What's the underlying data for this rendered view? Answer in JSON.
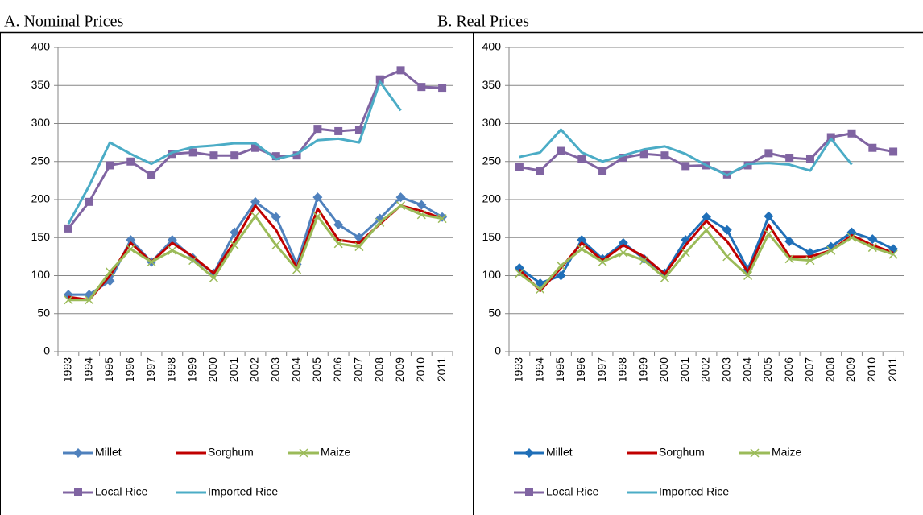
{
  "chart_data": [
    {
      "type": "line",
      "title": "A. Nominal Prices",
      "categories": [
        "1993",
        "1994",
        "1995",
        "1996",
        "1997",
        "1998",
        "1999",
        "2000",
        "2001",
        "2002",
        "2003",
        "2004",
        "2005",
        "2006",
        "2007",
        "2008",
        "2009",
        "2010",
        "2011"
      ],
      "ylim": [
        0,
        400
      ],
      "yticks": [
        0,
        50,
        100,
        150,
        200,
        250,
        300,
        350,
        400
      ],
      "grid": true,
      "legend": "bottom",
      "series": [
        {
          "name": "Millet",
          "color": "#4f81bd",
          "marker": "diamond",
          "values": [
            75,
            75,
            93,
            147,
            118,
            147,
            123,
            103,
            157,
            197,
            177,
            115,
            203,
            167,
            150,
            175,
            203,
            193,
            177
          ]
        },
        {
          "name": "Sorghum",
          "color": "#c00000",
          "marker": "none",
          "values": [
            72,
            68,
            100,
            143,
            118,
            143,
            125,
            103,
            145,
            192,
            160,
            110,
            188,
            147,
            143,
            168,
            192,
            185,
            175
          ]
        },
        {
          "name": "Maize",
          "color": "#9bbb59",
          "marker": "x",
          "values": [
            68,
            68,
            105,
            135,
            118,
            133,
            120,
            97,
            140,
            178,
            140,
            108,
            178,
            142,
            138,
            170,
            192,
            180,
            175
          ]
        },
        {
          "name": "Local Rice",
          "color": "#8064a2",
          "marker": "square",
          "values": [
            162,
            197,
            245,
            250,
            232,
            260,
            262,
            258,
            258,
            268,
            257,
            258,
            293,
            290,
            292,
            358,
            370,
            348,
            347
          ]
        },
        {
          "name": "Imported Rice",
          "color": "#4bacc6",
          "marker": "none",
          "values": [
            168,
            218,
            275,
            260,
            247,
            262,
            269,
            271,
            274,
            274,
            253,
            260,
            278,
            280,
            275,
            355,
            317,
            null,
            null
          ]
        }
      ]
    },
    {
      "type": "line",
      "title": "B. Real Prices",
      "categories": [
        "1993",
        "1994",
        "1995",
        "1996",
        "1997",
        "1998",
        "1999",
        "2000",
        "2001",
        "2002",
        "2003",
        "2004",
        "2005",
        "2006",
        "2007",
        "2008",
        "2009",
        "2010",
        "2011"
      ],
      "ylim": [
        0,
        400
      ],
      "yticks": [
        0,
        50,
        100,
        150,
        200,
        250,
        300,
        350,
        400
      ],
      "grid": true,
      "legend": "bottom",
      "series": [
        {
          "name": "Millet",
          "color": "#1f6fb8",
          "marker": "diamond",
          "values": [
            110,
            90,
            100,
            147,
            122,
            143,
            122,
            103,
            147,
            177,
            160,
            108,
            178,
            145,
            130,
            138,
            157,
            148,
            135
          ]
        },
        {
          "name": "Sorghum",
          "color": "#c00000",
          "marker": "none",
          "values": [
            108,
            80,
            110,
            143,
            120,
            140,
            125,
            102,
            140,
            172,
            145,
            105,
            167,
            125,
            125,
            133,
            153,
            140,
            130
          ]
        },
        {
          "name": "Maize",
          "color": "#9bbb59",
          "marker": "x",
          "values": [
            103,
            82,
            113,
            135,
            118,
            130,
            120,
            97,
            130,
            160,
            125,
            100,
            155,
            122,
            120,
            133,
            150,
            137,
            128
          ]
        },
        {
          "name": "Local Rice",
          "color": "#8064a2",
          "marker": "square",
          "values": [
            243,
            238,
            264,
            253,
            238,
            255,
            260,
            258,
            244,
            245,
            233,
            245,
            261,
            255,
            253,
            282,
            287,
            268,
            263
          ]
        },
        {
          "name": "Imported Rice",
          "color": "#4bacc6",
          "marker": "none",
          "values": [
            256,
            262,
            292,
            262,
            250,
            258,
            266,
            270,
            260,
            245,
            232,
            247,
            248,
            246,
            238,
            280,
            246,
            null,
            null
          ]
        }
      ]
    }
  ]
}
